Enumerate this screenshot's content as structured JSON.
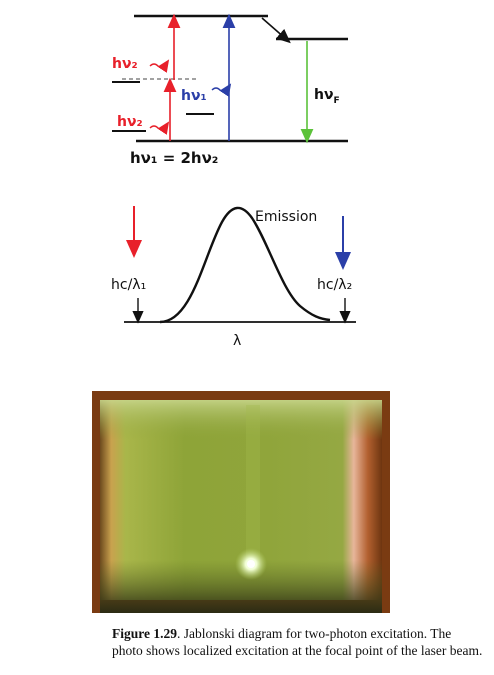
{
  "jablonski": {
    "label_hv2_upper": "hν₂",
    "label_hv2_lower": "hν₂",
    "label_hv1": "hν₁",
    "label_hvF": "hν",
    "label_hvF_sub": "F",
    "equation": "hν₁ = 2hν₂",
    "colors": {
      "two_photon": "#e8202a",
      "one_photon": "#2b3fa8",
      "fluorescence": "#5cc23a",
      "levels": "#111111"
    }
  },
  "spectrum": {
    "emission_label": "Emission",
    "left_label": "hc/λ₁",
    "right_label": "hc/λ₂",
    "axis_label": "λ"
  },
  "photo": {
    "colors": {
      "frame": "#7a3b12",
      "liquid": "#8fa33a",
      "glow": "#f4ffe0"
    }
  },
  "caption": {
    "figure_label": "Figure 1.29",
    "text": ". Jablonski diagram for two-photon excitation. The photo shows localized excitation at the focal point of the laser beam."
  }
}
